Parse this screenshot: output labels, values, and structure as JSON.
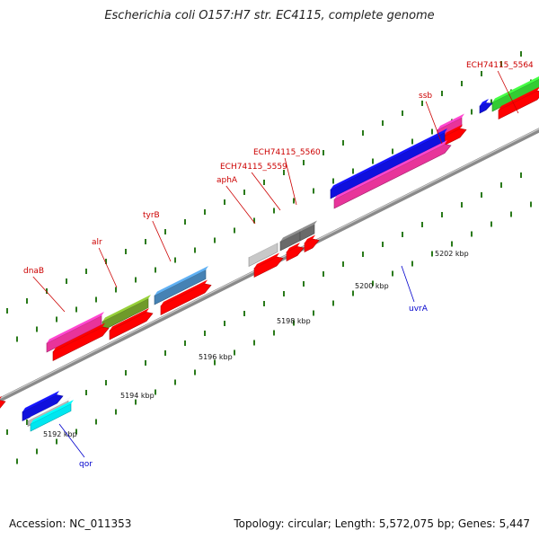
{
  "title": "Escherichia coli O157:H7 str. EC4115, complete genome",
  "footer": {
    "accession": "Accession: NC_011353",
    "topology": "Topology: circular; Length: 5,572,075 bp; Genes: 5,447"
  },
  "colors": {
    "backbone": "#8a8a8a",
    "tick": "#2a7a1a",
    "cds": "#ff0000",
    "label_forward": "#cc0000",
    "label_reverse": "#0000cc"
  },
  "ticks": [
    {
      "label": "5192 kbp"
    },
    {
      "label": "5194 kbp"
    },
    {
      "label": "5196 kbp"
    },
    {
      "label": "5198 kbp"
    },
    {
      "label": "5200 kbp"
    },
    {
      "label": "5202 kbp"
    }
  ],
  "genes": [
    {
      "name": "dnaB",
      "color": "#e8349a"
    },
    {
      "name": "alr",
      "color": "#6f9a2a"
    },
    {
      "name": "tyrB",
      "color": "#4682b4"
    },
    {
      "name": "aphA",
      "color": "#c8c8c8"
    },
    {
      "name": "ECH74115_5559",
      "color": "#6a6a6a"
    },
    {
      "name": "ECH74115_5560",
      "color": "#6a6a6a"
    },
    {
      "name": "ssb",
      "color": "#e8349a"
    },
    {
      "name": "ECH74115_5564",
      "color": "#33cc33"
    },
    {
      "name": "uvrA",
      "color": "#1010dd"
    },
    {
      "name": "qor",
      "color": "#1010dd"
    }
  ]
}
